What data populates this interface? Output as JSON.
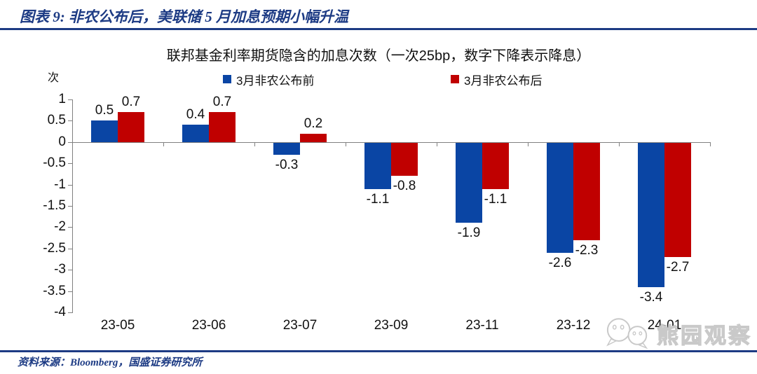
{
  "report": {
    "header_title": "图表 9: 非农公布后，美联储 5 月加息预期小幅升温",
    "source_note": "资料来源：Bloomberg，国盛证券研究所"
  },
  "watermark": {
    "text": "熊园观察",
    "icon": "wechat-chat-bubbles"
  },
  "colors": {
    "navy_accent": "#1D3B84",
    "bar_pre_blue": "#0A45A4",
    "bar_post_red": "#C00000",
    "axis_gray": "#808080",
    "watermark_gray": "#C9C9C9"
  },
  "chart_data": {
    "type": "bar",
    "title": "联邦基金利率期货隐含的加息次数（一次25bp，数字下降表示降息）",
    "unit_label": "次",
    "xlabel": "",
    "ylabel": "次",
    "categories": [
      "23-05",
      "23-06",
      "23-07",
      "23-09",
      "23-11",
      "23-12",
      "24-01"
    ],
    "series": [
      {
        "name": "3月非农公布前",
        "color": "#0A45A4",
        "values": [
          0.5,
          0.4,
          -0.3,
          -1.1,
          -1.9,
          -2.6,
          -3.4
        ]
      },
      {
        "name": "3月非农公布后",
        "color": "#C00000",
        "values": [
          0.7,
          0.7,
          0.2,
          -0.8,
          -1.1,
          -2.3,
          -2.7
        ]
      }
    ],
    "ylim": [
      -4,
      1
    ],
    "yticks": [
      1,
      0.5,
      0,
      -0.5,
      -1,
      -1.5,
      -2,
      -2.5,
      -3,
      -3.5,
      -4
    ],
    "legend_position": "top",
    "grid": false,
    "data_labels": true
  }
}
